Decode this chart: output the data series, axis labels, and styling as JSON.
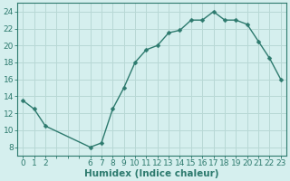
{
  "x": [
    0,
    1,
    2,
    6,
    7,
    8,
    9,
    10,
    11,
    12,
    13,
    14,
    15,
    16,
    17,
    18,
    19,
    20,
    21,
    22,
    23
  ],
  "y": [
    13.5,
    12.5,
    10.5,
    8.0,
    8.5,
    12.5,
    15.0,
    18.0,
    19.5,
    20.0,
    21.5,
    21.8,
    23.0,
    23.0,
    24.0,
    23.0,
    23.0,
    22.5,
    20.5,
    18.5,
    16.0
  ],
  "line_color": "#2d7a6e",
  "marker": "D",
  "marker_size": 2.5,
  "bg_color": "#d5efee",
  "grid_color": "#b8d8d5",
  "xlabel": "Humidex (Indice chaleur)",
  "xlabel_fontsize": 7.5,
  "tick_fontsize": 6.5,
  "xlim": [
    -0.5,
    23.5
  ],
  "ylim": [
    7,
    25
  ],
  "yticks": [
    8,
    10,
    12,
    14,
    16,
    18,
    20,
    22,
    24
  ],
  "xticks_all": [
    0,
    1,
    2,
    3,
    4,
    5,
    6,
    7,
    8,
    9,
    10,
    11,
    12,
    13,
    14,
    15,
    16,
    17,
    18,
    19,
    20,
    21,
    22,
    23
  ],
  "xtick_labels_show": [
    0,
    1,
    2,
    6,
    7,
    8,
    9,
    10,
    11,
    12,
    13,
    14,
    15,
    16,
    17,
    18,
    19,
    20,
    21,
    22,
    23
  ],
  "figsize": [
    3.2,
    2.0
  ],
  "dpi": 100
}
